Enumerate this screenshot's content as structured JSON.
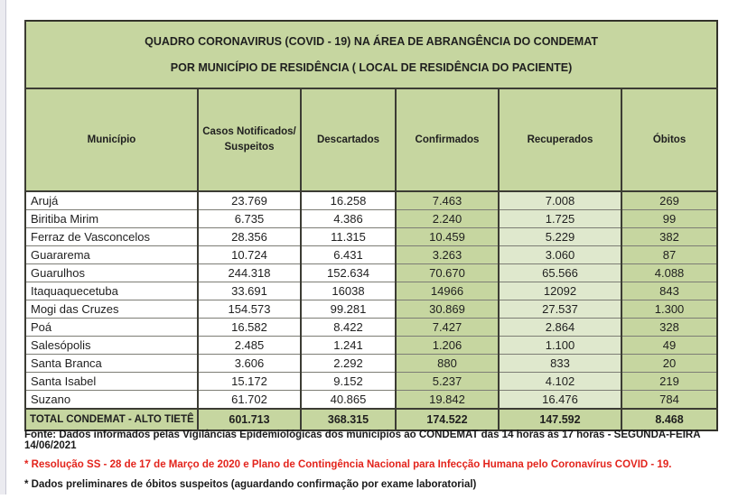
{
  "colors": {
    "green_medium": "#c6d6a0",
    "green_light": "#dfe8cd",
    "red_note": "#e3241c",
    "text_dark": "#1a1a1a"
  },
  "table": {
    "title_line1": "QUADRO CORONAVIRUS (COVID - 19) NA ÁREA DE ABRANGÊNCIA DO CONDEMAT",
    "title_line2": "POR MUNICÍPIO DE RESIDÊNCIA ( LOCAL DE RESIDÊNCIA DO PACIENTE)",
    "columns": [
      "Município",
      "Casos Notificados/ Suspeitos",
      "Descartados",
      "Confirmados",
      "Recuperados",
      "Óbitos"
    ],
    "column_keys": [
      "municipio",
      "casos",
      "descartados",
      "confirmados",
      "recuperados",
      "obitos"
    ],
    "rows": [
      {
        "municipio": "Arujá",
        "casos": "23.769",
        "descartados": "16.258",
        "confirmados": "7.463",
        "recuperados": "7.008",
        "obitos": "269"
      },
      {
        "municipio": "Biritiba Mirim",
        "casos": "6.735",
        "descartados": "4.386",
        "confirmados": "2.240",
        "recuperados": "1.725",
        "obitos": "99"
      },
      {
        "municipio": "Ferraz de Vasconcelos",
        "casos": "28.356",
        "descartados": "11.315",
        "confirmados": "10.459",
        "recuperados": "5.229",
        "obitos": "382"
      },
      {
        "municipio": "Guararema",
        "casos": "10.724",
        "descartados": "6.431",
        "confirmados": "3.263",
        "recuperados": "3.060",
        "obitos": "87"
      },
      {
        "municipio": "Guarulhos",
        "casos": "244.318",
        "descartados": "152.634",
        "confirmados": "70.670",
        "recuperados": "65.566",
        "obitos": "4.088"
      },
      {
        "municipio": "Itaquaquecetuba",
        "casos": "33.691",
        "descartados": "16038",
        "confirmados": "14966",
        "recuperados": "12092",
        "obitos": "843"
      },
      {
        "municipio": "Mogi das Cruzes",
        "casos": "154.573",
        "descartados": "99.281",
        "confirmados": "30.869",
        "recuperados": "27.537",
        "obitos": "1.300"
      },
      {
        "municipio": "Poá",
        "casos": "16.582",
        "descartados": "8.422",
        "confirmados": "7.427",
        "recuperados": "2.864",
        "obitos": "328"
      },
      {
        "municipio": "Salesópolis",
        "casos": "2.485",
        "descartados": "1.241",
        "confirmados": "1.206",
        "recuperados": "1.100",
        "obitos": "49"
      },
      {
        "municipio": "Santa Branca",
        "casos": "3.606",
        "descartados": "2.292",
        "confirmados": "880",
        "recuperados": "833",
        "obitos": "20"
      },
      {
        "municipio": "Santa Isabel",
        "casos": "15.172",
        "descartados": "9.152",
        "confirmados": "5.237",
        "recuperados": "4.102",
        "obitos": "219"
      },
      {
        "municipio": "Suzano",
        "casos": "61.702",
        "descartados": "40.865",
        "confirmados": "19.842",
        "recuperados": "16.476",
        "obitos": "784"
      }
    ],
    "total_row": {
      "municipio": "TOTAL CONDEMAT - ALTO TIETÊ",
      "casos": "601.713",
      "descartados": "368.315",
      "confirmados": "174.522",
      "recuperados": "147.592",
      "obitos": "8.468"
    }
  },
  "footnotes": [
    {
      "text": "Fonte: Dados informados pelas Vigilâncias Epidemiológicas dos municípios ao CONDEMAT das 14 horas às 17 horas - SEGUNDA-FEIRA 14/06/2021",
      "color": "#1a1a1a"
    },
    {
      "text": "* Resolução SS - 28 de 17 de Março de 2020 e Plano de Contingência Nacional para Infecção Humana pelo Coronavírus COVID - 19.",
      "color": "#e3241c"
    },
    {
      "text": "* Dados preliminares de óbitos suspeitos (aguardando confirmação por exame laboratorial)",
      "color": "#1a1a1a"
    }
  ]
}
